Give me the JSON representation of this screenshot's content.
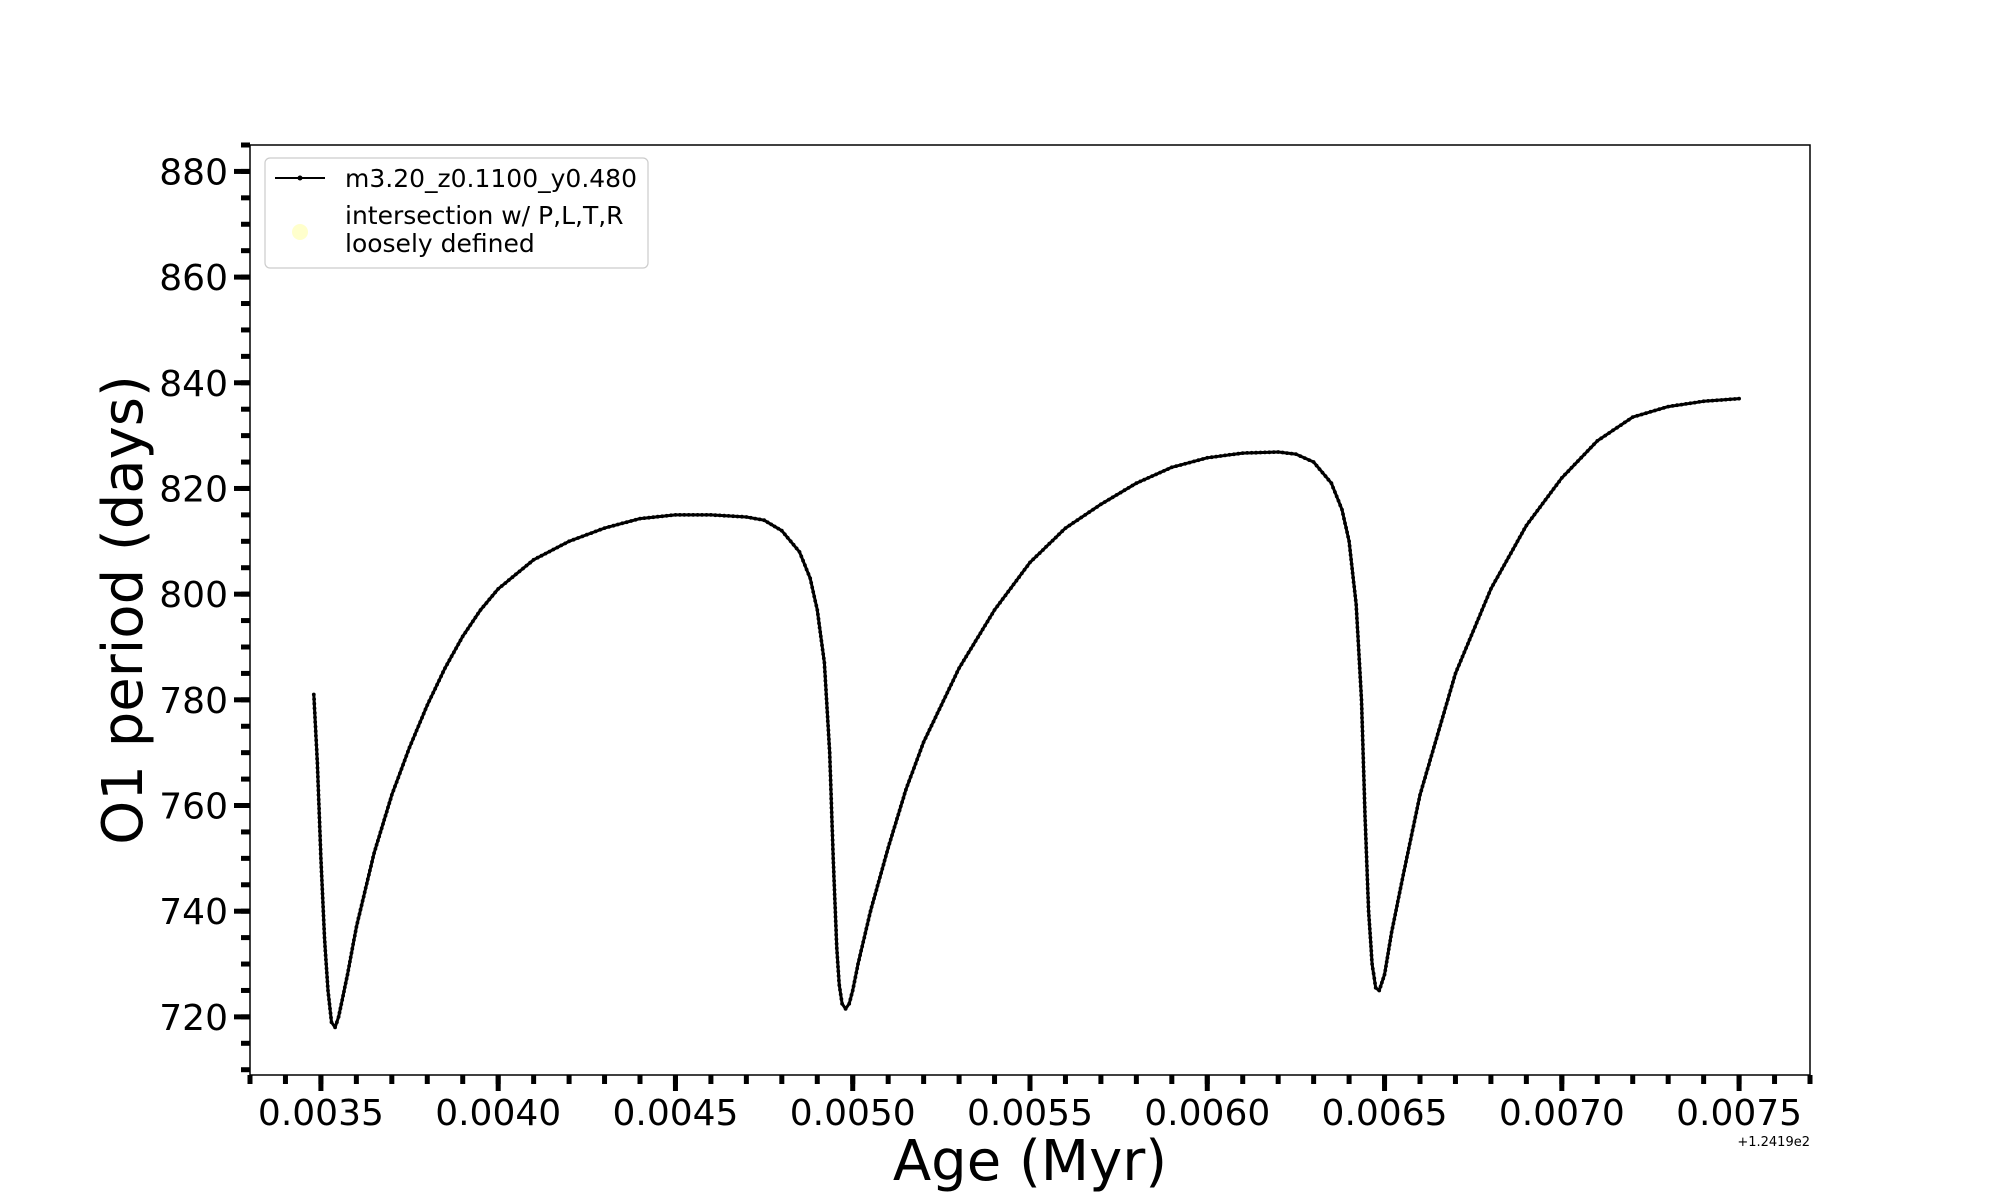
{
  "chart_data": {
    "type": "line",
    "xlabel": "Age (Myr)",
    "ylabel": "O1 period (days)",
    "x_offset_label": "+1.2419e2",
    "xlim": [
      0.0033,
      0.0077
    ],
    "ylim": [
      709,
      885
    ],
    "x_ticks": [
      0.0035,
      0.004,
      0.0045,
      0.005,
      0.0055,
      0.006,
      0.0065,
      0.007,
      0.0075
    ],
    "x_tick_labels": [
      "0.0035",
      "0.0040",
      "0.0045",
      "0.0050",
      "0.0055",
      "0.0060",
      "0.0065",
      "0.0070",
      "0.0075"
    ],
    "y_ticks": [
      720,
      740,
      760,
      780,
      800,
      820,
      840,
      860,
      880
    ],
    "y_tick_labels": [
      "720",
      "740",
      "760",
      "780",
      "800",
      "820",
      "840",
      "860",
      "880"
    ],
    "x_minor_step": 0.0001,
    "y_minor_step": 5,
    "grid": false,
    "legend": {
      "placement": "top-left",
      "entries": [
        {
          "label": "m3.20_z0.1100_y0.480",
          "marker": "line-dot",
          "color": "#000000"
        },
        {
          "label": "intersection w/ P,L,T,R\nloosely defined",
          "marker": "circle",
          "color": "#ffffcc"
        }
      ]
    },
    "series": [
      {
        "name": "m3.20_z0.1100_y0.480",
        "color": "#000000",
        "x": [
          0.00348,
          0.00349,
          0.0035,
          0.00351,
          0.00352,
          0.00353,
          0.00354,
          0.00355,
          0.003575,
          0.0036,
          0.00365,
          0.0037,
          0.00375,
          0.0038,
          0.00385,
          0.0039,
          0.00395,
          0.004,
          0.0041,
          0.0042,
          0.0043,
          0.0044,
          0.0045,
          0.0046,
          0.0047,
          0.00475,
          0.0048,
          0.00485,
          0.00488,
          0.0049,
          0.00492,
          0.004935,
          0.004945,
          0.004955,
          0.004962,
          0.00497,
          0.00498,
          0.00499,
          0.005,
          0.005015,
          0.00505,
          0.0051,
          0.00515,
          0.0052,
          0.0053,
          0.0054,
          0.0055,
          0.0056,
          0.0057,
          0.0058,
          0.0059,
          0.006,
          0.0061,
          0.0062,
          0.00625,
          0.0063,
          0.00635,
          0.00638,
          0.0064,
          0.00642,
          0.006435,
          0.006445,
          0.006455,
          0.006465,
          0.006475,
          0.006485,
          0.0065,
          0.00652,
          0.00655,
          0.0066,
          0.0067,
          0.0068,
          0.0069,
          0.007,
          0.0071,
          0.0072,
          0.0073,
          0.0074,
          0.0075
        ],
        "values": [
          781,
          768,
          750,
          735,
          725,
          719,
          718,
          720,
          728,
          737,
          751,
          762,
          771,
          779,
          786,
          792,
          797,
          801,
          806.5,
          810,
          812.5,
          814.3,
          815,
          815,
          814.6,
          814,
          812,
          808,
          803,
          797,
          787,
          770,
          750,
          733,
          726,
          722.5,
          721.5,
          722.5,
          725,
          730,
          740,
          752,
          763,
          772,
          786,
          797,
          806,
          812.5,
          817,
          821,
          824,
          825.8,
          826.7,
          826.9,
          826.5,
          825,
          821,
          816,
          810,
          798,
          780,
          758,
          740,
          730,
          725.5,
          725,
          728,
          736,
          746,
          762,
          785,
          801,
          813,
          822,
          829,
          833.5,
          835.5,
          836.5,
          837
        ]
      }
    ]
  }
}
